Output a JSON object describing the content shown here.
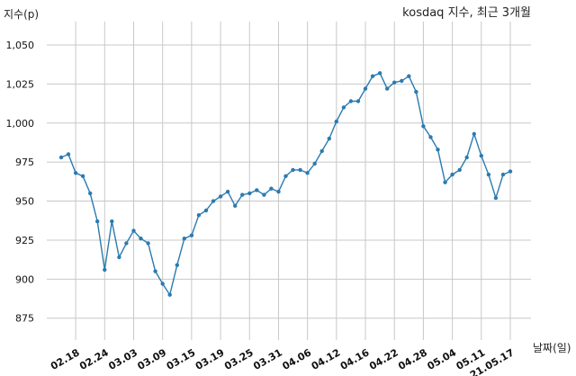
{
  "chart_data": {
    "type": "line",
    "title": "kosdaq 지수, 최근 3개월",
    "ylabel": "지수(p)",
    "xlabel": "날짜(일)",
    "ylim": [
      861,
      1065
    ],
    "yticks": [
      875,
      900,
      925,
      950,
      975,
      1000,
      1025,
      1050
    ],
    "ytick_labels": [
      "875",
      "900",
      "925",
      "950",
      "975",
      "1,000",
      "1,025",
      "1,050"
    ],
    "xtick_labels": [
      "02.18",
      "02.24",
      "03.03",
      "03.09",
      "03.15",
      "03.19",
      "03.25",
      "03.31",
      "04.06",
      "04.12",
      "04.16",
      "04.22",
      "04.28",
      "05.04",
      "05.11",
      "21.05.17"
    ],
    "xtick_index": [
      2,
      6,
      10,
      14,
      18,
      22,
      26,
      30,
      34,
      38,
      42,
      46,
      50,
      54,
      58,
      62
    ],
    "grid": true,
    "color": "#2b7bb0",
    "series": [
      {
        "values": [
          978,
          980,
          968,
          966,
          955,
          937,
          906,
          937,
          914,
          923,
          931,
          926,
          923,
          905,
          897,
          890,
          909,
          926,
          928,
          941,
          944,
          950,
          953,
          956,
          947,
          954,
          955,
          957,
          954,
          958,
          956,
          966,
          970,
          970,
          968,
          974,
          982,
          990,
          1001,
          1010,
          1014,
          1014,
          1022,
          1030,
          1032,
          1022,
          1026,
          1027,
          1030,
          1020,
          998,
          991,
          983,
          962,
          967,
          970,
          978,
          993,
          979,
          967,
          952,
          967,
          969
        ]
      }
    ]
  }
}
